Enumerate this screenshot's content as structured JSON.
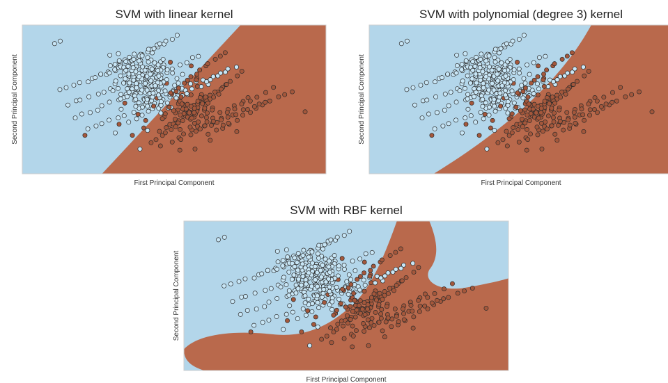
{
  "colors": {
    "class_0_region": "#b3d6ea",
    "class_1_region": "#b9694c",
    "class_0_point": "#c8e6f6",
    "class_1_point": "#a4573b",
    "point_edge": "#2b2b2b"
  },
  "chart_data": [
    {
      "type": "scatter",
      "title": "SVM with linear kernel",
      "xlabel": "First Principal Component",
      "ylabel": "Second Principal Component",
      "kernel": "linear",
      "xlim": [
        -4,
        4
      ],
      "ylim": [
        -3,
        3
      ],
      "ticks": "none",
      "grid": false,
      "legend": "none",
      "decision_regions": [
        "class 0 (upper-left, light blue)",
        "class 1 (lower-right, brown)"
      ],
      "series": [
        {
          "class": 0,
          "color": "light blue"
        },
        {
          "class": 1,
          "color": "brown"
        }
      ]
    },
    {
      "type": "scatter",
      "title": "SVM with polynomial (degree 3) kernel",
      "xlabel": "First Principal Component",
      "ylabel": "Second Principal Component",
      "kernel": "poly",
      "degree": 3,
      "xlim": [
        -4,
        4
      ],
      "ylim": [
        -3,
        3
      ],
      "ticks": "none",
      "grid": false,
      "legend": "none",
      "decision_regions": [
        "class 0 (upper-left, light blue)",
        "class 1 (lower-right, brown)"
      ],
      "series": [
        {
          "class": 0,
          "color": "light blue"
        },
        {
          "class": 1,
          "color": "brown"
        }
      ]
    },
    {
      "type": "scatter",
      "title": "SVM with RBF kernel",
      "xlabel": "First Principal Component",
      "ylabel": "Second Principal Component",
      "kernel": "rbf",
      "xlim": [
        -4,
        4
      ],
      "ylim": [
        -3,
        3
      ],
      "ticks": "none",
      "grid": false,
      "legend": "none",
      "decision_regions": [
        "class 0 (light blue)",
        "class 1 (brown, curved band)"
      ],
      "series": [
        {
          "class": 0,
          "color": "light blue"
        },
        {
          "class": 1,
          "color": "brown"
        }
      ]
    }
  ],
  "points": [
    {
      "x": -3.15,
      "y": 2.25,
      "c": 0
    },
    {
      "x": -3.0,
      "y": 2.35,
      "c": 0
    },
    {
      "x": 3.45,
      "y": -0.5,
      "c": 1
    },
    {
      "x": -2.35,
      "y": -1.45,
      "c": 1
    },
    {
      "x": -1.55,
      "y": -1.35,
      "c": 0
    },
    {
      "x": -1.1,
      "y": -1.45,
      "c": 1
    },
    {
      "x": -0.8,
      "y": -1.15,
      "c": 1
    },
    {
      "x": -0.7,
      "y": -1.25,
      "c": 0
    },
    {
      "x": -0.9,
      "y": -2.0,
      "c": 0
    },
    {
      "x": -1.45,
      "y": -1.0,
      "c": 1
    },
    {
      "x": -1.3,
      "y": -0.15,
      "c": 1
    },
    {
      "x": 1.45,
      "y": -1.0,
      "c": 1
    },
    {
      "x": 1.65,
      "y": -1.3,
      "c": 1
    },
    {
      "x": 0.55,
      "y": -2.0,
      "c": 1
    },
    {
      "x": 0.95,
      "y": -1.65,
      "c": 1
    },
    {
      "x": 0.15,
      "y": -2.05,
      "c": 1
    },
    {
      "x": -1.05,
      "y": 0.15,
      "c": 1
    },
    {
      "x": -0.6,
      "y": 0.25,
      "c": 1
    },
    {
      "x": -0.2,
      "y": 0.65,
      "c": 1
    },
    {
      "x": 0.45,
      "y": 1.35,
      "c": 1
    },
    {
      "x": -0.55,
      "y": 0.8,
      "c": 1
    },
    {
      "x": -0.95,
      "y": -0.6,
      "c": 1
    },
    {
      "x": 0.2,
      "y": 0.4,
      "c": 0
    },
    {
      "x": 0.35,
      "y": 0.2,
      "c": 0
    },
    {
      "x": 0.9,
      "y": 0.6,
      "c": 0
    },
    {
      "x": 1.15,
      "y": 0.95,
      "c": 0
    },
    {
      "x": 1.35,
      "y": 1.1,
      "c": 0
    },
    {
      "x": -0.35,
      "y": -0.55,
      "c": 0
    },
    {
      "x": -0.15,
      "y": -0.35,
      "c": 0
    },
    {
      "x": 0.7,
      "y": -0.05,
      "c": 0
    },
    {
      "x": -0.1,
      "y": 1.5,
      "c": 1
    },
    {
      "x": 0.6,
      "y": 0.85,
      "c": 1
    },
    {
      "x": -0.45,
      "y": 0.05,
      "c": 1
    },
    {
      "x": 0.05,
      "y": -0.9,
      "c": 1
    },
    {
      "x": -0.75,
      "y": -0.85,
      "c": 1
    },
    {
      "x": -0.5,
      "y": 1.15,
      "c": 1
    }
  ]
}
